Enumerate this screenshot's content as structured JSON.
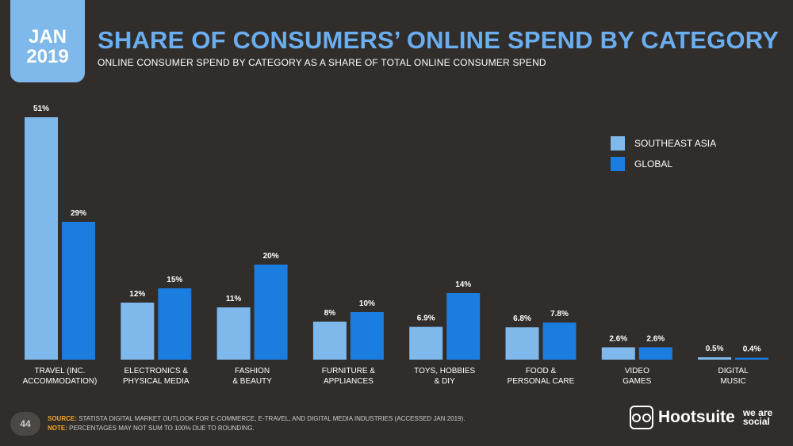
{
  "header": {
    "date_month": "JAN",
    "date_year": "2019",
    "title": "SHARE OF CONSUMERS’ ONLINE SPEND BY CATEGORY",
    "subtitle": "ONLINE CONSUMER SPEND BY CATEGORY AS A SHARE OF TOTAL ONLINE CONSUMER SPEND"
  },
  "colors": {
    "background": "#312d2b",
    "accent_title": "#6aaef0",
    "southeast_asia": "#7fb9ec",
    "global": "#1b7ddf",
    "source_label": "#f6a623"
  },
  "chart_data": {
    "type": "bar",
    "title": "SHARE OF CONSUMERS’ ONLINE SPEND BY CATEGORY",
    "xlabel": "",
    "ylabel": "",
    "ylim": [
      0,
      51
    ],
    "grid": false,
    "legend_position": "top-right",
    "categories": [
      [
        "TRAVEL (INC.",
        "ACCOMMODATION)"
      ],
      [
        "ELECTRONICS &",
        "PHYSICAL MEDIA"
      ],
      [
        "FASHION",
        "& BEAUTY"
      ],
      [
        "FURNITURE &",
        "APPLIANCES"
      ],
      [
        "TOYS, HOBBIES",
        "& DIY"
      ],
      [
        "FOOD &",
        "PERSONAL CARE"
      ],
      [
        "VIDEO",
        "GAMES"
      ],
      [
        "DIGITAL",
        "MUSIC"
      ]
    ],
    "series": [
      {
        "name": "SOUTHEAST ASIA",
        "values": [
          51,
          12,
          11,
          8,
          6.9,
          6.8,
          2.6,
          0.5
        ],
        "labels": [
          "51%",
          "12%",
          "11%",
          "8%",
          "6.9%",
          "6.8%",
          "2.6%",
          "0.5%"
        ]
      },
      {
        "name": "GLOBAL",
        "values": [
          29,
          15,
          20,
          10,
          14,
          7.8,
          2.6,
          0.4
        ],
        "labels": [
          "29%",
          "15%",
          "20%",
          "10%",
          "14%",
          "7.8%",
          "2.6%",
          "0.4%"
        ]
      }
    ]
  },
  "legend": {
    "items": [
      "SOUTHEAST ASIA",
      "GLOBAL"
    ]
  },
  "footer": {
    "page_number": "44",
    "source_label": "SOURCE:",
    "source_text": " STATISTA DIGITAL MARKET OUTLOOK FOR E-COMMERCE, E-TRAVEL, AND DIGITAL MEDIA INDUSTRIES (ACCESSED JAN 2019).",
    "note_label": "NOTE:",
    "note_text": " PERCENTAGES MAY NOT SUM TO 100% DUE TO ROUNDING.",
    "brand_name": "Hootsuite",
    "brand_partner": "we are social"
  }
}
